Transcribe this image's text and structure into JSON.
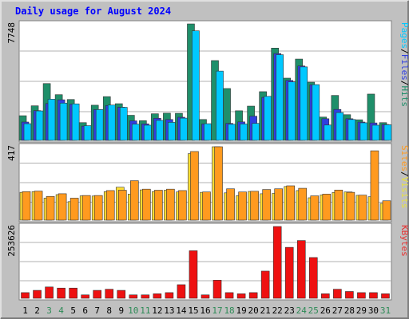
{
  "chart_data": {
    "type": "bar",
    "title": "Daily usage for August 2024",
    "categories": [
      "1",
      "2",
      "3",
      "4",
      "5",
      "6",
      "7",
      "8",
      "9",
      "10",
      "11",
      "12",
      "13",
      "14",
      "15",
      "16",
      "17",
      "18",
      "19",
      "20",
      "21",
      "22",
      "23",
      "24",
      "25",
      "26",
      "27",
      "28",
      "29",
      "30",
      "31"
    ],
    "weekend_days": [
      "3",
      "4",
      "10",
      "11",
      "17",
      "18",
      "24",
      "25",
      "31"
    ],
    "panels": [
      {
        "id": "top",
        "ylim": [
          0,
          7748
        ],
        "max_label": "7748",
        "axis_legend": [
          "Pages",
          "Files",
          "Hits"
        ],
        "axis_legend_colors": [
          "#00c8ff",
          "#2f3fe0",
          "#1f8f6a"
        ],
        "series": [
          {
            "name": "Hits",
            "color": "#1f8f6a",
            "values": [
              1640,
              2300,
              3780,
              3040,
              2720,
              1180,
              2340,
              2910,
              2440,
              1670,
              1310,
              1770,
              1810,
              1800,
              7748,
              1390,
              5310,
              3450,
              1970,
              2280,
              3240,
              6140,
              4140,
              5410,
              3870,
              1550,
              2990,
              1710,
              1370,
              3080,
              1180
            ]
          },
          {
            "name": "Files",
            "color": "#2f3fe0",
            "values": [
              1220,
              1980,
              2450,
              2700,
              2410,
              950,
              2050,
              2320,
              2210,
              1300,
              1100,
              1470,
              1390,
              1540,
              null,
              1090,
              null,
              1130,
              1230,
              1610,
              2860,
              5780,
              3990,
              4950,
              3700,
              1440,
              2060,
              1440,
              1220,
              1160,
              1060
            ]
          },
          {
            "name": "Pages",
            "color": "#00c8ff",
            "values": [
              1110,
              1960,
              2740,
              2480,
              2430,
              980,
              2050,
              2350,
              2200,
              1080,
              1010,
              1330,
              1200,
              1480,
              7290,
              1110,
              4610,
              1070,
              1090,
              1130,
              2930,
              5700,
              3890,
              4890,
              3710,
              1020,
              1850,
              1390,
              1170,
              1010,
              1040
            ]
          }
        ]
      },
      {
        "id": "middle",
        "ylim": [
          0,
          417
        ],
        "max_label": "417",
        "axis_legend": [
          "Sites",
          "Visits"
        ],
        "axis_legend_colors": [
          "#ff9a1f",
          "#e8e040"
        ],
        "series": [
          {
            "name": "Visits",
            "color": "#ffdd33",
            "values": [
              158,
              162,
              125,
              145,
              105,
              138,
              137,
              162,
              187,
              148,
              172,
              162,
              170,
              160,
              378,
              158,
              417,
              155,
              139,
              163,
              150,
              152,
              191,
              168,
              127,
              143,
              157,
              160,
              141,
              133,
              95
            ]
          },
          {
            "name": "Sites",
            "color": "#ff9a1f",
            "values": [
              162,
              165,
              135,
              150,
              125,
              140,
              140,
              168,
              170,
              224,
              176,
              170,
              176,
              168,
              390,
              160,
              417,
              178,
              160,
              164,
              174,
              178,
              195,
              181,
              138,
              148,
              171,
              158,
              142,
              394,
              110
            ]
          }
        ]
      },
      {
        "id": "bottom",
        "ylim": [
          0,
          253626
        ],
        "max_label": "253626",
        "axis_legend": [
          "KBytes"
        ],
        "axis_legend_colors": [
          "#e63030"
        ],
        "series": [
          {
            "name": "KBytes",
            "color": "#ee1111",
            "values": [
              20000,
              28000,
              40000,
              36000,
              36000,
              12000,
              28000,
              32000,
              28000,
              12000,
              12000,
              16000,
              20000,
              48000,
              168000,
              12000,
              64000,
              20000,
              16000,
              20000,
              96000,
              253626,
              180000,
              204000,
              144000,
              16000,
              32000,
              24000,
              20000,
              20000,
              16000
            ]
          }
        ]
      }
    ]
  },
  "colors": {
    "background": "#c0c0c0",
    "plot_background": "#ffffff",
    "title": "#0000ff",
    "border_light": "#e0e0e0",
    "border_dark": "#808080",
    "gridline": "#b0b0b0",
    "day_label_weekday": "#000000",
    "day_label_weekend": "#2e8b57"
  }
}
